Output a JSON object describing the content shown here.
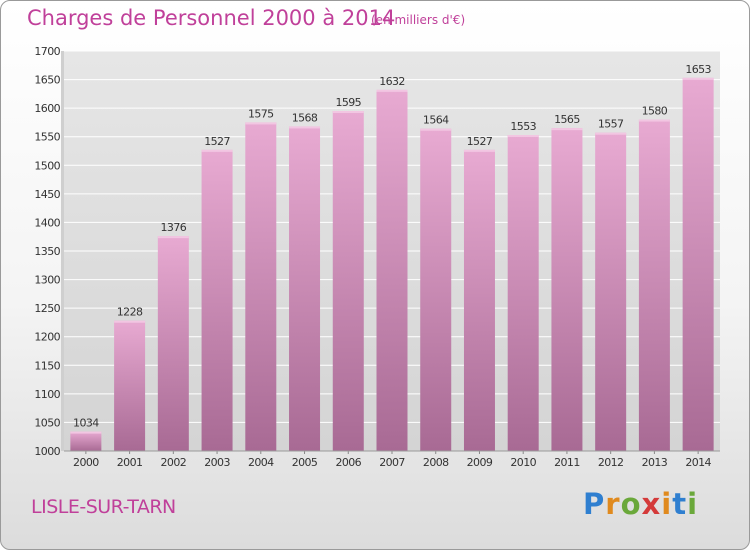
{
  "header": {
    "title": "Charges de Personnel 2000 à 2014",
    "unit": "(en milliers d'€)"
  },
  "footer": {
    "city": "LISLE-SUR-TARN",
    "logo": "Proxiti"
  },
  "colors": {
    "title": "#c0409a",
    "bar_top": "#e8aad2",
    "bar_bottom": "#a86a94",
    "plot_background": "#dedede",
    "logo_letters": [
      "#2f7fd0",
      "#e08a1e",
      "#6aa83a",
      "#d43a3a",
      "#e08a1e",
      "#2f7fd0",
      "#6aa83a"
    ]
  },
  "chart_data": {
    "type": "bar",
    "title": "Charges de Personnel 2000 à 2014",
    "subtitle": "(en milliers d'€)",
    "categories": [
      "2000",
      "2001",
      "2002",
      "2003",
      "2004",
      "2005",
      "2006",
      "2007",
      "2008",
      "2009",
      "2010",
      "2011",
      "2012",
      "2013",
      "2014"
    ],
    "values": [
      1034,
      1228,
      1376,
      1527,
      1575,
      1568,
      1595,
      1632,
      1564,
      1527,
      1553,
      1565,
      1557,
      1580,
      1653
    ],
    "ylim": [
      1000,
      1700
    ],
    "yticks": [
      1000,
      1050,
      1100,
      1150,
      1200,
      1250,
      1300,
      1350,
      1400,
      1450,
      1500,
      1550,
      1600,
      1650,
      1700
    ],
    "grid": true,
    "data_labels": true
  }
}
